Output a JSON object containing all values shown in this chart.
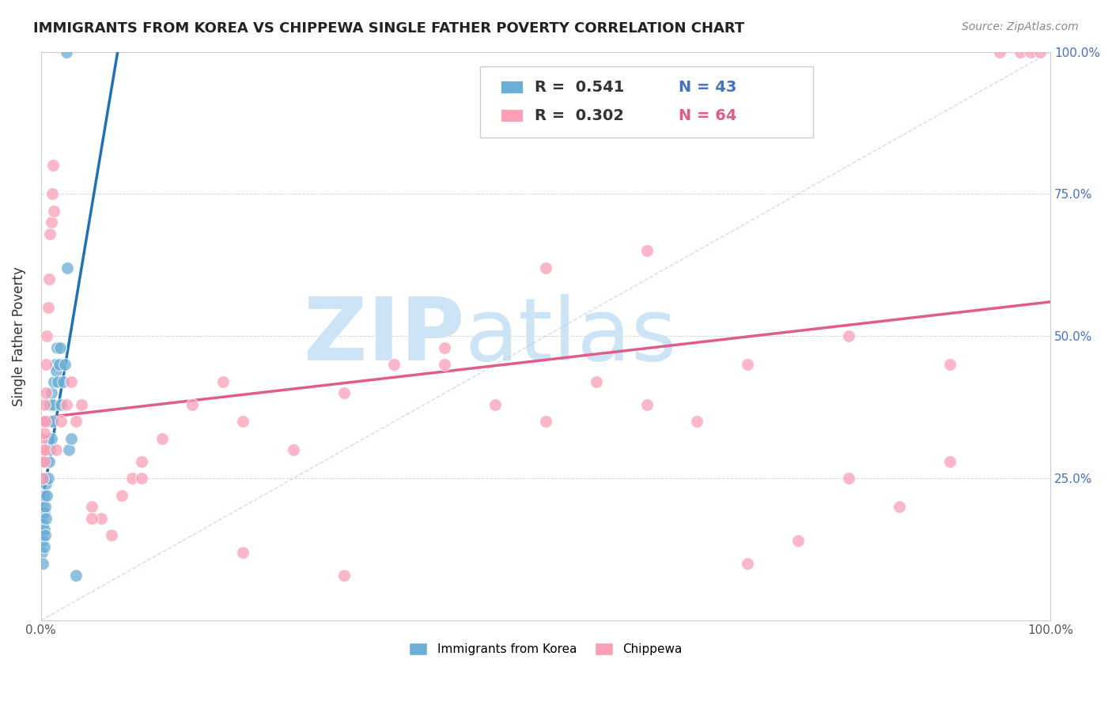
{
  "title": "IMMIGRANTS FROM KOREA VS CHIPPEWA SINGLE FATHER POVERTY CORRELATION CHART",
  "source": "Source: ZipAtlas.com",
  "ylabel": "Single Father Poverty",
  "legend_r1": "R =  0.541",
  "legend_n1": "N = 43",
  "legend_r2": "R =  0.302",
  "legend_n2": "N = 64",
  "blue_color": "#6baed6",
  "pink_color": "#fa9fb5",
  "blue_line_color": "#2171b5",
  "pink_line_color": "#e05c8a",
  "legend_label1": "Immigrants from Korea",
  "legend_label2": "Chippewa",
  "background_color": "#ffffff",
  "grid_color": "#cccccc",
  "watermark_zip": "ZIP",
  "watermark_atlas": "atlas",
  "watermark_color": "#cce4f5"
}
